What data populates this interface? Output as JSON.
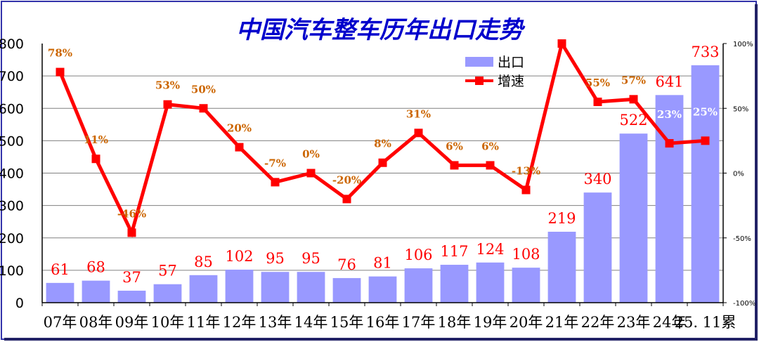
{
  "chart_data": {
    "type": "bar+line",
    "title": "中国汽车整车历年出口走势",
    "categories": [
      "07年",
      "08年",
      "09年",
      "10年",
      "11年",
      "12年",
      "13年",
      "14年",
      "15年",
      "16年",
      "17年",
      "18年",
      "19年",
      "20年",
      "21年",
      "22年",
      "23年",
      "24年",
      "25. 11累"
    ],
    "series": [
      {
        "name": "出口",
        "type": "bar",
        "axis": "left",
        "values": [
          61,
          68,
          37,
          57,
          85,
          102,
          95,
          95,
          76,
          81,
          106,
          117,
          124,
          108,
          219,
          340,
          522,
          641,
          733
        ],
        "labels": [
          "61",
          "68",
          "37",
          "57",
          "85",
          "102",
          "95",
          "95",
          "76",
          "81",
          "106",
          "117",
          "124",
          "108",
          "219",
          "340",
          "522",
          "641",
          "733"
        ]
      },
      {
        "name": "增速",
        "type": "line",
        "axis": "right",
        "values": [
          78,
          11,
          -46,
          53,
          50,
          20,
          -7,
          0,
          -20,
          8,
          31,
          6,
          6,
          -13,
          101,
          55,
          57,
          23,
          25
        ],
        "labels": [
          "78%",
          "11%",
          "-46%",
          "53%",
          "50%",
          "20%",
          "-7%",
          "0%",
          "-20%",
          "8%",
          "31%",
          "6%",
          "6%",
          "-13%",
          "",
          "55%",
          "57%",
          "23%",
          "25%"
        ]
      }
    ],
    "y_left": {
      "range": [
        0,
        800
      ],
      "ticks": [
        "0",
        "100",
        "200",
        "300",
        "400",
        "500",
        "600",
        "700",
        "800"
      ]
    },
    "y_right": {
      "range": [
        -100,
        100
      ],
      "ticks": [
        "-100%",
        "-50%",
        "0%",
        "50%",
        "100%"
      ]
    },
    "grid": true,
    "legend": "top-right",
    "colors": {
      "bar": "#9999ff",
      "line": "#ff0000",
      "bar_label": "#ff0000",
      "line_label": "#cc6600",
      "line_label_inside_bar": "#ffffff",
      "title": "#0000cc",
      "grid": "#808080",
      "border": "#3333aa"
    }
  }
}
